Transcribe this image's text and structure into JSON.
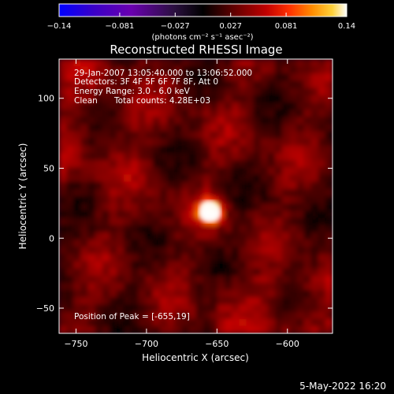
{
  "chart_data": {
    "type": "heatmap",
    "title": "Reconstructed RHESSI Image",
    "xlabel": "Heliocentric X (arcsec)",
    "ylabel": "Heliocentric Y (arcsec)",
    "xlim": [
      -762,
      -568
    ],
    "ylim": [
      -68,
      128
    ],
    "x_ticks": [
      -750,
      -700,
      -650,
      -600
    ],
    "x_tick_labels": [
      "−750",
      "−700",
      "−650",
      "−600"
    ],
    "y_ticks": [
      -50,
      0,
      50,
      100
    ],
    "y_tick_labels": [
      "−50",
      "0",
      "50",
      "100"
    ],
    "peak": {
      "x": -655,
      "y": 19,
      "value": 0.14
    },
    "colorbar": {
      "min": -0.14,
      "max": 0.14,
      "ticks": [
        -0.14,
        -0.081,
        -0.027,
        0.027,
        0.081,
        0.14
      ],
      "tick_labels": [
        "−0.14",
        "−0.081",
        "−0.027",
        "0.027",
        "0.081",
        "0.14"
      ],
      "unit_text": "(photons cm⁻² s⁻¹ asec⁻²)",
      "colormap": [
        "#0000ff",
        "#3a00c8",
        "#6a00b0",
        "#2b1040",
        "#000000",
        "#5a0000",
        "#c00000",
        "#ff3000",
        "#ff8c00",
        "#ffd23a",
        "#ffffff"
      ]
    },
    "grid": false,
    "annotations": {
      "time_range": "29-Jan-2007 13:05:40.000 to 13:06:52.000",
      "detectors": "Detectors: 3F 4F 5F 6F 7F 8F, Att 0",
      "energy": "Energy Range: 3.0 - 6.0 keV",
      "method": "Clean",
      "total_counts": "Total counts: 4.28E+03",
      "peak_position": "Position of Peak = [-655,19]"
    },
    "footer_date": "5-May-2022 16:20"
  }
}
